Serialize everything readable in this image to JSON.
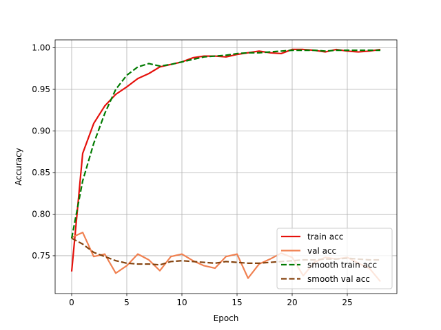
{
  "chart_data": {
    "type": "line",
    "title": "",
    "xlabel": "Epoch",
    "ylabel": "Accuracy",
    "xlim": [
      -1.5,
      29.5
    ],
    "ylim": [
      0.7045,
      1.0095
    ],
    "xticks": [
      0,
      5,
      10,
      15,
      20,
      25
    ],
    "yticks": [
      0.75,
      0.8,
      0.85,
      0.9,
      0.95,
      1.0
    ],
    "xtick_labels": [
      "0",
      "5",
      "10",
      "15",
      "20",
      "25"
    ],
    "ytick_labels": [
      "0.75",
      "0.80",
      "0.85",
      "0.90",
      "0.95",
      "1.00"
    ],
    "grid": true,
    "legend_position": "lower-right",
    "x": [
      0,
      1,
      2,
      3,
      4,
      5,
      6,
      7,
      8,
      9,
      10,
      11,
      12,
      13,
      14,
      15,
      16,
      17,
      18,
      19,
      20,
      21,
      22,
      23,
      24,
      25,
      26,
      27,
      28
    ],
    "series": [
      {
        "name": "train acc",
        "color": "#e5110c",
        "dash": "solid",
        "values": [
          0.731,
          0.873,
          0.909,
          0.93,
          0.944,
          0.953,
          0.963,
          0.969,
          0.977,
          0.98,
          0.983,
          0.988,
          0.99,
          0.99,
          0.989,
          0.992,
          0.994,
          0.996,
          0.994,
          0.993,
          0.998,
          0.998,
          0.997,
          0.995,
          0.998,
          0.996,
          0.995,
          0.996,
          0.998
        ]
      },
      {
        "name": "val acc",
        "color": "#f08050",
        "dash": "solid",
        "values": [
          0.772,
          0.778,
          0.749,
          0.752,
          0.729,
          0.738,
          0.752,
          0.745,
          0.732,
          0.749,
          0.752,
          0.744,
          0.738,
          0.735,
          0.749,
          0.752,
          0.723,
          0.74,
          0.746,
          0.753,
          0.748,
          0.726,
          0.742,
          0.748,
          0.746,
          0.748,
          0.741,
          0.735,
          0.719
        ]
      },
      {
        "name": "smooth train acc",
        "color": "#007a00",
        "dash": "dashed",
        "values": [
          0.771,
          0.84,
          0.885,
          0.921,
          0.95,
          0.967,
          0.977,
          0.981,
          0.978,
          0.98,
          0.983,
          0.986,
          0.989,
          0.99,
          0.991,
          0.993,
          0.994,
          0.994,
          0.995,
          0.996,
          0.997,
          0.997,
          0.997,
          0.996,
          0.997,
          0.997,
          0.997,
          0.997,
          0.997
        ]
      },
      {
        "name": "smooth val acc",
        "color": "#84420d",
        "dash": "dashed",
        "values": [
          0.771,
          0.764,
          0.754,
          0.749,
          0.744,
          0.741,
          0.74,
          0.74,
          0.739,
          0.743,
          0.744,
          0.743,
          0.742,
          0.741,
          0.743,
          0.742,
          0.741,
          0.741,
          0.742,
          0.743,
          0.744,
          0.745,
          0.745,
          0.746,
          0.746,
          0.747,
          0.746,
          0.745,
          0.745
        ]
      }
    ]
  }
}
